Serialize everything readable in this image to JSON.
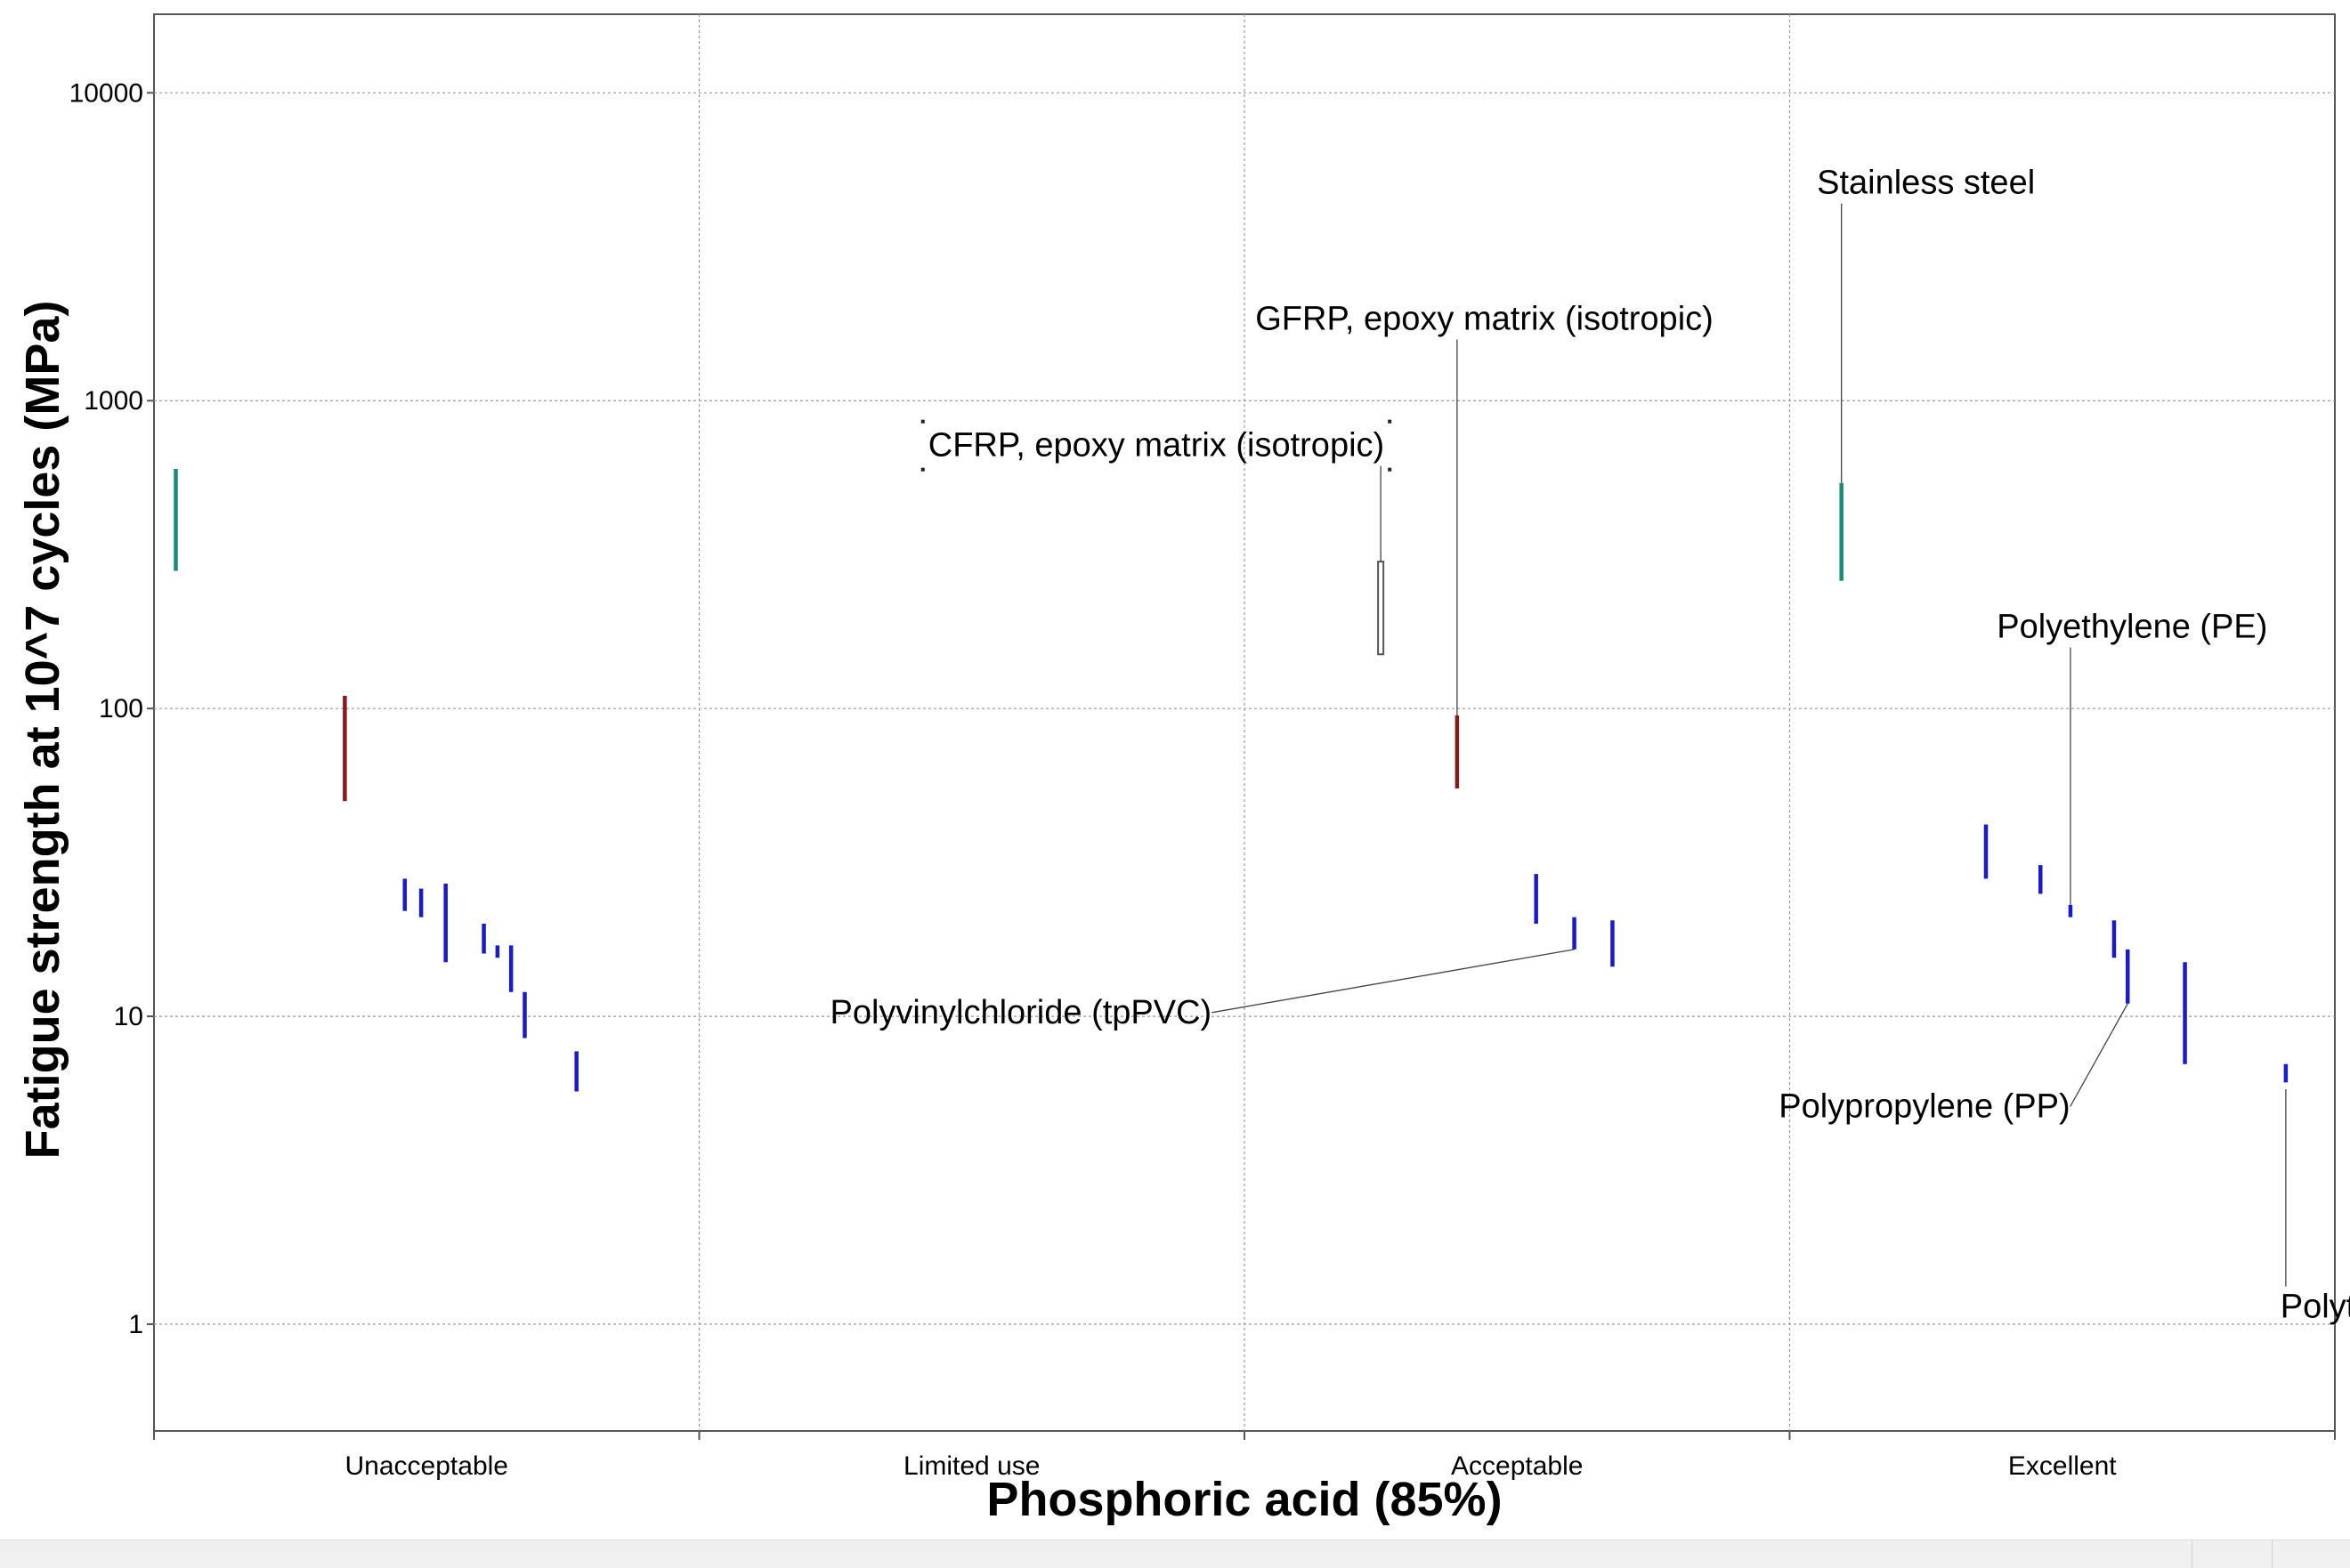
{
  "chart_data": {
    "type": "scatter",
    "title": "",
    "xlabel": "Phosphoric acid (85%)",
    "ylabel": "Fatigue strength at 10^7 cycles (MPa)",
    "yscale": "log",
    "ylim": [
      0.45,
      18000
    ],
    "categories": [
      "Unacceptable",
      "Limited use",
      "Acceptable",
      "Excellent"
    ],
    "yticks": [
      {
        "value": 1,
        "label": "1"
      },
      {
        "value": 10,
        "label": "10"
      },
      {
        "value": 100,
        "label": "100"
      },
      {
        "value": 1000,
        "label": "1000"
      },
      {
        "value": 10000,
        "label": "10000"
      }
    ],
    "grid": true,
    "ranges": [
      {
        "category": "Unacceptable",
        "offset": 0.04,
        "low": 280,
        "high": 600,
        "color": "#1a8a7a",
        "style": "bar"
      },
      {
        "category": "Unacceptable",
        "offset": 0.35,
        "low": 50,
        "high": 110,
        "color": "#8b1a1a",
        "style": "bar"
      },
      {
        "category": "Unacceptable",
        "offset": 0.46,
        "low": 22,
        "high": 28,
        "color": "#1a1acc",
        "style": "bar"
      },
      {
        "category": "Unacceptable",
        "offset": 0.49,
        "low": 21,
        "high": 26,
        "color": "#1a1acc",
        "style": "bar"
      },
      {
        "category": "Unacceptable",
        "offset": 0.535,
        "low": 15,
        "high": 27,
        "color": "#1a1acc",
        "style": "bar"
      },
      {
        "category": "Unacceptable",
        "offset": 0.605,
        "low": 16,
        "high": 20,
        "color": "#1a1acc",
        "style": "bar"
      },
      {
        "category": "Unacceptable",
        "offset": 0.63,
        "low": 15.5,
        "high": 17,
        "color": "#1a1acc",
        "style": "bar"
      },
      {
        "category": "Unacceptable",
        "offset": 0.655,
        "low": 12,
        "high": 17,
        "color": "#1a1acc",
        "style": "bar"
      },
      {
        "category": "Unacceptable",
        "offset": 0.68,
        "low": 8.5,
        "high": 12,
        "color": "#1a1acc",
        "style": "bar"
      },
      {
        "category": "Unacceptable",
        "offset": 0.775,
        "low": 5.7,
        "high": 7.7,
        "color": "#1a1acc",
        "style": "bar"
      },
      {
        "category": "Acceptable",
        "offset": 0.25,
        "low": 150,
        "high": 300,
        "color": "#555555",
        "style": "outline"
      },
      {
        "category": "Acceptable",
        "offset": 0.39,
        "low": 55,
        "high": 95,
        "color": "#8b1a1a",
        "style": "bar"
      },
      {
        "category": "Acceptable",
        "offset": 0.535,
        "low": 20,
        "high": 29,
        "color": "#1a1acc",
        "style": "bar"
      },
      {
        "category": "Acceptable",
        "offset": 0.605,
        "low": 16.5,
        "high": 21,
        "color": "#1a1acc",
        "style": "bar"
      },
      {
        "category": "Acceptable",
        "offset": 0.675,
        "low": 14.5,
        "high": 20.5,
        "color": "#1a1acc",
        "style": "bar"
      },
      {
        "category": "Excellent",
        "offset": 0.095,
        "low": 260,
        "high": 540,
        "color": "#1a8a7a",
        "style": "bar"
      },
      {
        "category": "Excellent",
        "offset": 0.36,
        "low": 28,
        "high": 42,
        "color": "#1a1acc",
        "style": "bar"
      },
      {
        "category": "Excellent",
        "offset": 0.46,
        "low": 25,
        "high": 31,
        "color": "#1a1acc",
        "style": "bar"
      },
      {
        "category": "Excellent",
        "offset": 0.515,
        "low": 21,
        "high": 23,
        "color": "#1a1acc",
        "style": "bar"
      },
      {
        "category": "Excellent",
        "offset": 0.595,
        "low": 15.5,
        "high": 20.5,
        "color": "#1a1acc",
        "style": "bar"
      },
      {
        "category": "Excellent",
        "offset": 0.62,
        "low": 11,
        "high": 16.5,
        "color": "#1a1acc",
        "style": "bar"
      },
      {
        "category": "Excellent",
        "offset": 0.725,
        "low": 7,
        "high": 15,
        "color": "#1a1acc",
        "style": "bar"
      },
      {
        "category": "Excellent",
        "offset": 0.91,
        "low": 6.1,
        "high": 7,
        "color": "#1a1acc",
        "style": "bar"
      }
    ],
    "annotations": [
      {
        "text": "Stainless steel",
        "category": "Excellent",
        "offset": 0.095,
        "value": 540,
        "label_category": "Excellent",
        "label_offset": 0.05,
        "label_value": 4700,
        "anchor": "start"
      },
      {
        "text": "GFRP, epoxy matrix (isotropic)",
        "category": "Acceptable",
        "offset": 0.39,
        "value": 95,
        "label_category": "Limited use",
        "label_offset": 1.02,
        "label_value": 1700,
        "anchor": "start"
      },
      {
        "text": "CFRP, epoxy matrix (isotropic)",
        "category": "Acceptable",
        "offset": 0.25,
        "value": 300,
        "label_category": "Limited use",
        "label_offset": 0.42,
        "label_value": 660,
        "anchor": "start",
        "boxed": true
      },
      {
        "text": "Polyethylene (PE)",
        "category": "Excellent",
        "offset": 0.515,
        "value": 23,
        "label_category": "Excellent",
        "label_offset": 0.38,
        "label_value": 170,
        "anchor": "start"
      },
      {
        "text": "Polyvinylchloride (tpPVC)",
        "category": "Acceptable",
        "offset": 0.605,
        "value": 16.5,
        "label_category": "Limited use",
        "label_offset": 0.24,
        "label_value": 9.5,
        "anchor": "start"
      },
      {
        "text": "Polypropylene (PP)",
        "category": "Excellent",
        "offset": 0.62,
        "value": 11,
        "label_category": "Excellent",
        "label_offset": -0.02,
        "label_value": 4.7,
        "anchor": "start"
      },
      {
        "text": "Polytetrafluoroethylene (Teflon, PTFE)",
        "category": "Excellent",
        "offset": 0.91,
        "value": 5.8,
        "label_category": "Acceptable",
        "label_offset": 1.9,
        "label_value": 1.05,
        "anchor": "start"
      }
    ]
  }
}
